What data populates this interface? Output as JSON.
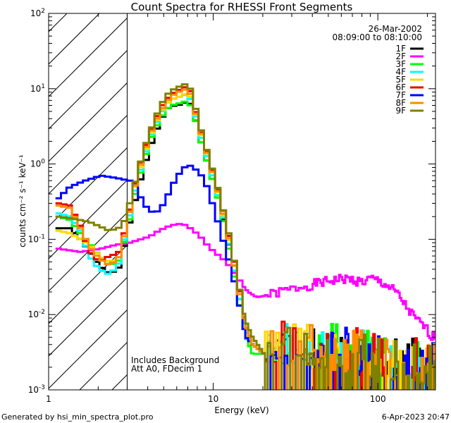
{
  "chart_data": {
    "type": "line",
    "title": "Count Spectra for RHESSI Front Segments",
    "date": "26-Mar-2002",
    "time_range": "08:09:00 to 08:10:00",
    "xlabel": "Energy (keV)",
    "ylabel": "counts cm⁻² s⁻¹ keV⁻¹",
    "xscale": "log",
    "yscale": "log",
    "xlim": [
      1,
      224
    ],
    "ylim": [
      0.001,
      100
    ],
    "x_ticks": [
      {
        "value": 1,
        "label": "1"
      },
      {
        "value": 10,
        "label": "10"
      },
      {
        "value": 100,
        "label": "100"
      }
    ],
    "y_ticks": [
      {
        "value": 0.001,
        "mant": "10",
        "exp": "-3"
      },
      {
        "value": 0.01,
        "mant": "10",
        "exp": "-2"
      },
      {
        "value": 0.1,
        "mant": "10",
        "exp": "-1"
      },
      {
        "value": 1,
        "mant": "10",
        "exp": "0"
      },
      {
        "value": 10,
        "mant": "10",
        "exp": "1"
      },
      {
        "value": 100,
        "mant": "10",
        "exp": "2"
      }
    ],
    "hatched_region": [
      1,
      3
    ],
    "legend_position": "top-right",
    "notes": [
      "Includes Background",
      "Att A0, FDecim 1"
    ],
    "series": [
      {
        "name": "1F",
        "color": "#000000",
        "noise_seed": 1,
        "points": [
          [
            1.1,
            0.14
          ],
          [
            1.3,
            0.14
          ],
          [
            1.5,
            0.1
          ],
          [
            1.7,
            0.07
          ],
          [
            1.95,
            0.045
          ],
          [
            2.25,
            0.035
          ],
          [
            2.55,
            0.04
          ],
          [
            2.8,
            0.09
          ],
          [
            3.05,
            0.2
          ],
          [
            3.3,
            0.4
          ],
          [
            3.7,
            1.0
          ],
          [
            4.1,
            2.0
          ],
          [
            4.6,
            3.8
          ],
          [
            5.1,
            5.5
          ],
          [
            5.6,
            6.0
          ],
          [
            6.2,
            6.2
          ],
          [
            6.8,
            7.0
          ],
          [
            7.2,
            5.5
          ],
          [
            7.6,
            3.5
          ],
          [
            8.1,
            2.0
          ],
          [
            8.6,
            1.3
          ],
          [
            9.2,
            0.8
          ],
          [
            9.8,
            0.5
          ],
          [
            10.5,
            0.3
          ],
          [
            11.3,
            0.15
          ],
          [
            12.2,
            0.07
          ],
          [
            13.2,
            0.03
          ],
          [
            14.3,
            0.012
          ],
          [
            15.5,
            0.006
          ],
          [
            17,
            0.004
          ],
          [
            20,
            0.003
          ]
        ]
      },
      {
        "name": "2F",
        "color": "#ff00ff",
        "noise_seed": 0,
        "points": [
          [
            1.1,
            0.075
          ],
          [
            1.5,
            0.068
          ],
          [
            2,
            0.075
          ],
          [
            2.5,
            0.085
          ],
          [
            3,
            0.09
          ],
          [
            3.5,
            0.1
          ],
          [
            4,
            0.11
          ],
          [
            4.5,
            0.13
          ],
          [
            5,
            0.145
          ],
          [
            5.5,
            0.155
          ],
          [
            6,
            0.16
          ],
          [
            6.5,
            0.155
          ],
          [
            7,
            0.14
          ],
          [
            8,
            0.11
          ],
          [
            9,
            0.08
          ],
          [
            10,
            0.065
          ],
          [
            11,
            0.055
          ],
          [
            12,
            0.045
          ],
          [
            13,
            0.035
          ],
          [
            14,
            0.028
          ],
          [
            16,
            0.02
          ],
          [
            18,
            0.017
          ],
          [
            21,
            0.018
          ],
          [
            25,
            0.02
          ],
          [
            30,
            0.022
          ],
          [
            35,
            0.024
          ],
          [
            42,
            0.026
          ],
          [
            50,
            0.028
          ],
          [
            60,
            0.03
          ],
          [
            70,
            0.029
          ],
          [
            80,
            0.027
          ],
          [
            90,
            0.03
          ],
          [
            100,
            0.028
          ],
          [
            110,
            0.025
          ],
          [
            120,
            0.022
          ],
          [
            130,
            0.019
          ],
          [
            140,
            0.015
          ],
          [
            150,
            0.012
          ],
          [
            160,
            0.01
          ],
          [
            175,
            0.008
          ],
          [
            190,
            0.007
          ],
          [
            205,
            0.0055
          ],
          [
            220,
            0.005
          ]
        ]
      },
      {
        "name": "3F",
        "color": "#00ff00",
        "noise_seed": 2,
        "points": [
          [
            1.1,
            0.2
          ],
          [
            1.3,
            0.18
          ],
          [
            1.5,
            0.12
          ],
          [
            1.7,
            0.09
          ],
          [
            1.95,
            0.06
          ],
          [
            2.25,
            0.045
          ],
          [
            2.55,
            0.05
          ],
          [
            2.8,
            0.1
          ],
          [
            3.05,
            0.22
          ],
          [
            3.3,
            0.5
          ],
          [
            3.7,
            1.2
          ],
          [
            4.1,
            2.4
          ],
          [
            4.6,
            4.0
          ],
          [
            5.1,
            5.5
          ],
          [
            5.6,
            6.2
          ],
          [
            6.2,
            6.5
          ],
          [
            6.8,
            7.0
          ],
          [
            7.2,
            5.0
          ],
          [
            7.6,
            3.5
          ],
          [
            8.1,
            2.0
          ],
          [
            8.6,
            1.3
          ],
          [
            9.2,
            0.8
          ],
          [
            9.8,
            0.5
          ],
          [
            10.5,
            0.3
          ],
          [
            11.3,
            0.14
          ],
          [
            12.2,
            0.06
          ],
          [
            13.2,
            0.025
          ],
          [
            14.3,
            0.01
          ],
          [
            15.5,
            0.005
          ],
          [
            17,
            0.003
          ],
          [
            20,
            0.003
          ]
        ]
      },
      {
        "name": "4F",
        "color": "#00ffff",
        "noise_seed": 3,
        "points": [
          [
            1.1,
            0.22
          ],
          [
            1.3,
            0.2
          ],
          [
            1.5,
            0.13
          ],
          [
            1.7,
            0.06
          ],
          [
            1.95,
            0.04
          ],
          [
            2.25,
            0.034
          ],
          [
            2.55,
            0.045
          ],
          [
            2.8,
            0.11
          ],
          [
            3.05,
            0.25
          ],
          [
            3.3,
            0.55
          ],
          [
            3.7,
            1.3
          ],
          [
            4.1,
            2.6
          ],
          [
            4.6,
            4.5
          ],
          [
            5.1,
            6.5
          ],
          [
            5.6,
            7.5
          ],
          [
            6.2,
            8.0
          ],
          [
            6.8,
            8.5
          ],
          [
            7.2,
            6.0
          ],
          [
            7.6,
            4.0
          ],
          [
            8.1,
            2.3
          ],
          [
            8.6,
            1.5
          ],
          [
            9.2,
            0.9
          ],
          [
            9.8,
            0.55
          ],
          [
            10.5,
            0.32
          ],
          [
            11.3,
            0.16
          ],
          [
            12.2,
            0.07
          ],
          [
            13.2,
            0.03
          ],
          [
            14.3,
            0.012
          ],
          [
            15.5,
            0.006
          ],
          [
            17,
            0.004
          ],
          [
            20,
            0.003
          ]
        ]
      },
      {
        "name": "5F",
        "color": "#ffd700",
        "noise_seed": 4,
        "points": [
          [
            1.1,
            0.13
          ],
          [
            1.3,
            0.12
          ],
          [
            1.5,
            0.1
          ],
          [
            1.7,
            0.085
          ],
          [
            1.95,
            0.06
          ],
          [
            2.25,
            0.05
          ],
          [
            2.55,
            0.055
          ],
          [
            2.8,
            0.12
          ],
          [
            3.05,
            0.3
          ],
          [
            3.3,
            0.6
          ],
          [
            3.7,
            1.4
          ],
          [
            4.1,
            2.7
          ],
          [
            4.6,
            4.8
          ],
          [
            5.1,
            6.5
          ],
          [
            5.6,
            7.5
          ],
          [
            6.2,
            8.0
          ],
          [
            6.8,
            9.0
          ],
          [
            7.2,
            6.5
          ],
          [
            7.6,
            4.2
          ],
          [
            8.1,
            2.5
          ],
          [
            8.6,
            1.6
          ],
          [
            9.2,
            1.0
          ],
          [
            9.8,
            0.6
          ],
          [
            10.5,
            0.35
          ],
          [
            11.3,
            0.17
          ],
          [
            12.2,
            0.08
          ],
          [
            13.2,
            0.035
          ],
          [
            14.3,
            0.014
          ],
          [
            15.5,
            0.007
          ],
          [
            17,
            0.004
          ],
          [
            20,
            0.003
          ]
        ]
      },
      {
        "name": "6F",
        "color": "#ee0000",
        "noise_seed": 5,
        "points": [
          [
            1.1,
            0.3
          ],
          [
            1.3,
            0.28
          ],
          [
            1.5,
            0.15
          ],
          [
            1.7,
            0.07
          ],
          [
            1.95,
            0.05
          ],
          [
            2.25,
            0.06
          ],
          [
            2.55,
            0.065
          ],
          [
            2.8,
            0.13
          ],
          [
            3.05,
            0.3
          ],
          [
            3.3,
            0.7
          ],
          [
            3.7,
            1.6
          ],
          [
            4.1,
            3.0
          ],
          [
            4.6,
            5.5
          ],
          [
            5.1,
            7.5
          ],
          [
            5.6,
            9.0
          ],
          [
            6.2,
            10.0
          ],
          [
            6.8,
            11.0
          ],
          [
            7.2,
            7.5
          ],
          [
            7.6,
            4.5
          ],
          [
            8.1,
            2.7
          ],
          [
            8.6,
            1.7
          ],
          [
            9.2,
            1.05
          ],
          [
            9.8,
            0.65
          ],
          [
            10.5,
            0.38
          ],
          [
            11.3,
            0.2
          ],
          [
            12.2,
            0.09
          ],
          [
            13.2,
            0.04
          ],
          [
            14.3,
            0.015
          ],
          [
            15.5,
            0.007
          ],
          [
            17,
            0.004
          ],
          [
            20,
            0.003
          ]
        ]
      },
      {
        "name": "7F",
        "color": "#0000ff",
        "noise_seed": 6,
        "points": [
          [
            1.1,
            0.35
          ],
          [
            1.3,
            0.5
          ],
          [
            1.6,
            0.6
          ],
          [
            2.0,
            0.7
          ],
          [
            2.5,
            0.65
          ],
          [
            3.0,
            0.6
          ],
          [
            3.3,
            0.5
          ],
          [
            3.6,
            0.3
          ],
          [
            3.9,
            0.25
          ],
          [
            4.2,
            0.22
          ],
          [
            4.6,
            0.25
          ],
          [
            5.0,
            0.35
          ],
          [
            5.5,
            0.55
          ],
          [
            6.0,
            0.75
          ],
          [
            6.5,
            0.92
          ],
          [
            7.0,
            0.95
          ],
          [
            7.5,
            0.85
          ],
          [
            8.0,
            0.75
          ],
          [
            8.5,
            0.6
          ],
          [
            9.0,
            0.45
          ],
          [
            9.5,
            0.3
          ],
          [
            10.0,
            0.2
          ],
          [
            10.5,
            0.15
          ],
          [
            11.0,
            0.1
          ],
          [
            11.8,
            0.06
          ],
          [
            12.6,
            0.035
          ],
          [
            13.5,
            0.018
          ],
          [
            14.5,
            0.009
          ],
          [
            15.5,
            0.005
          ],
          [
            17,
            0.004
          ],
          [
            20,
            0.003
          ]
        ]
      },
      {
        "name": "8F",
        "color": "#ff8c00",
        "noise_seed": 7,
        "points": [
          [
            1.1,
            0.28
          ],
          [
            1.3,
            0.26
          ],
          [
            1.5,
            0.14
          ],
          [
            1.7,
            0.08
          ],
          [
            1.95,
            0.055
          ],
          [
            2.25,
            0.045
          ],
          [
            2.55,
            0.055
          ],
          [
            2.8,
            0.12
          ],
          [
            3.05,
            0.28
          ],
          [
            3.3,
            0.65
          ],
          [
            3.7,
            1.5
          ],
          [
            4.1,
            2.9
          ],
          [
            4.6,
            5.0
          ],
          [
            5.1,
            7.0
          ],
          [
            5.6,
            8.5
          ],
          [
            6.2,
            9.5
          ],
          [
            6.8,
            10.0
          ],
          [
            7.2,
            7.0
          ],
          [
            7.6,
            4.3
          ],
          [
            8.1,
            2.6
          ],
          [
            8.6,
            1.65
          ],
          [
            9.2,
            1.0
          ],
          [
            9.8,
            0.62
          ],
          [
            10.5,
            0.36
          ],
          [
            11.3,
            0.18
          ],
          [
            12.2,
            0.085
          ],
          [
            13.2,
            0.035
          ],
          [
            14.3,
            0.014
          ],
          [
            15.5,
            0.007
          ],
          [
            17,
            0.004
          ],
          [
            20,
            0.003
          ]
        ]
      },
      {
        "name": "9F",
        "color": "#808000",
        "noise_seed": 8,
        "points": [
          [
            1.1,
            0.2
          ],
          [
            1.3,
            0.19
          ],
          [
            1.5,
            0.18
          ],
          [
            1.7,
            0.17
          ],
          [
            1.95,
            0.15
          ],
          [
            2.25,
            0.13
          ],
          [
            2.55,
            0.14
          ],
          [
            2.8,
            0.18
          ],
          [
            3.05,
            0.35
          ],
          [
            3.3,
            0.7
          ],
          [
            3.7,
            1.7
          ],
          [
            4.1,
            3.2
          ],
          [
            4.6,
            6.0
          ],
          [
            5.1,
            8.5
          ],
          [
            5.6,
            10.0
          ],
          [
            6.2,
            11.0
          ],
          [
            6.8,
            12.0
          ],
          [
            7.2,
            8.0
          ],
          [
            7.6,
            5.0
          ],
          [
            8.1,
            2.9
          ],
          [
            8.6,
            1.8
          ],
          [
            9.2,
            1.1
          ],
          [
            9.8,
            0.68
          ],
          [
            10.5,
            0.4
          ],
          [
            11.3,
            0.2
          ],
          [
            12.2,
            0.1
          ],
          [
            13.2,
            0.04
          ],
          [
            14.3,
            0.016
          ],
          [
            15.5,
            0.008
          ],
          [
            17,
            0.005
          ],
          [
            20,
            0.003
          ]
        ]
      }
    ]
  },
  "footer": {
    "generator": "Generated by hsi_min_spectra_plot.pro",
    "timestamp": "6-Apr-2023 20:47"
  }
}
